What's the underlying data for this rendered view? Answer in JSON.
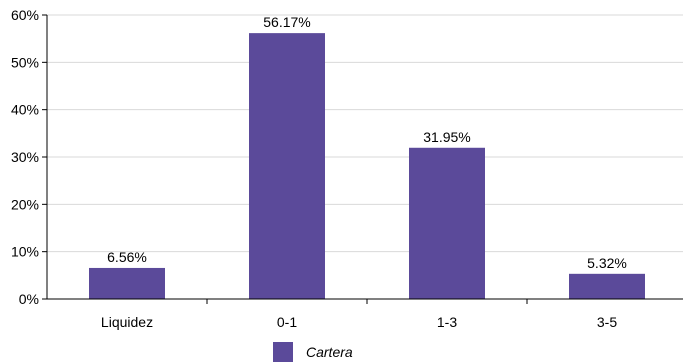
{
  "chart_data": {
    "type": "bar",
    "categories": [
      "Liquidez",
      "0-1",
      "1-3",
      "3-5"
    ],
    "series": [
      {
        "name": "Cartera",
        "values": [
          6.56,
          56.17,
          31.95,
          5.32
        ],
        "labels": [
          "6.56%",
          "56.17%",
          "31.95%",
          "5.32%"
        ],
        "color": "#5b4a9a"
      }
    ],
    "y_ticks": [
      "0%",
      "10%",
      "20%",
      "30%",
      "40%",
      "50%",
      "60%"
    ],
    "ylim": [
      0,
      60
    ],
    "grid": true,
    "legend_position": "bottom-center",
    "colors": {
      "bar": "#5b4a9a",
      "grid": "#d9d9d9",
      "axis": "#000000"
    }
  }
}
